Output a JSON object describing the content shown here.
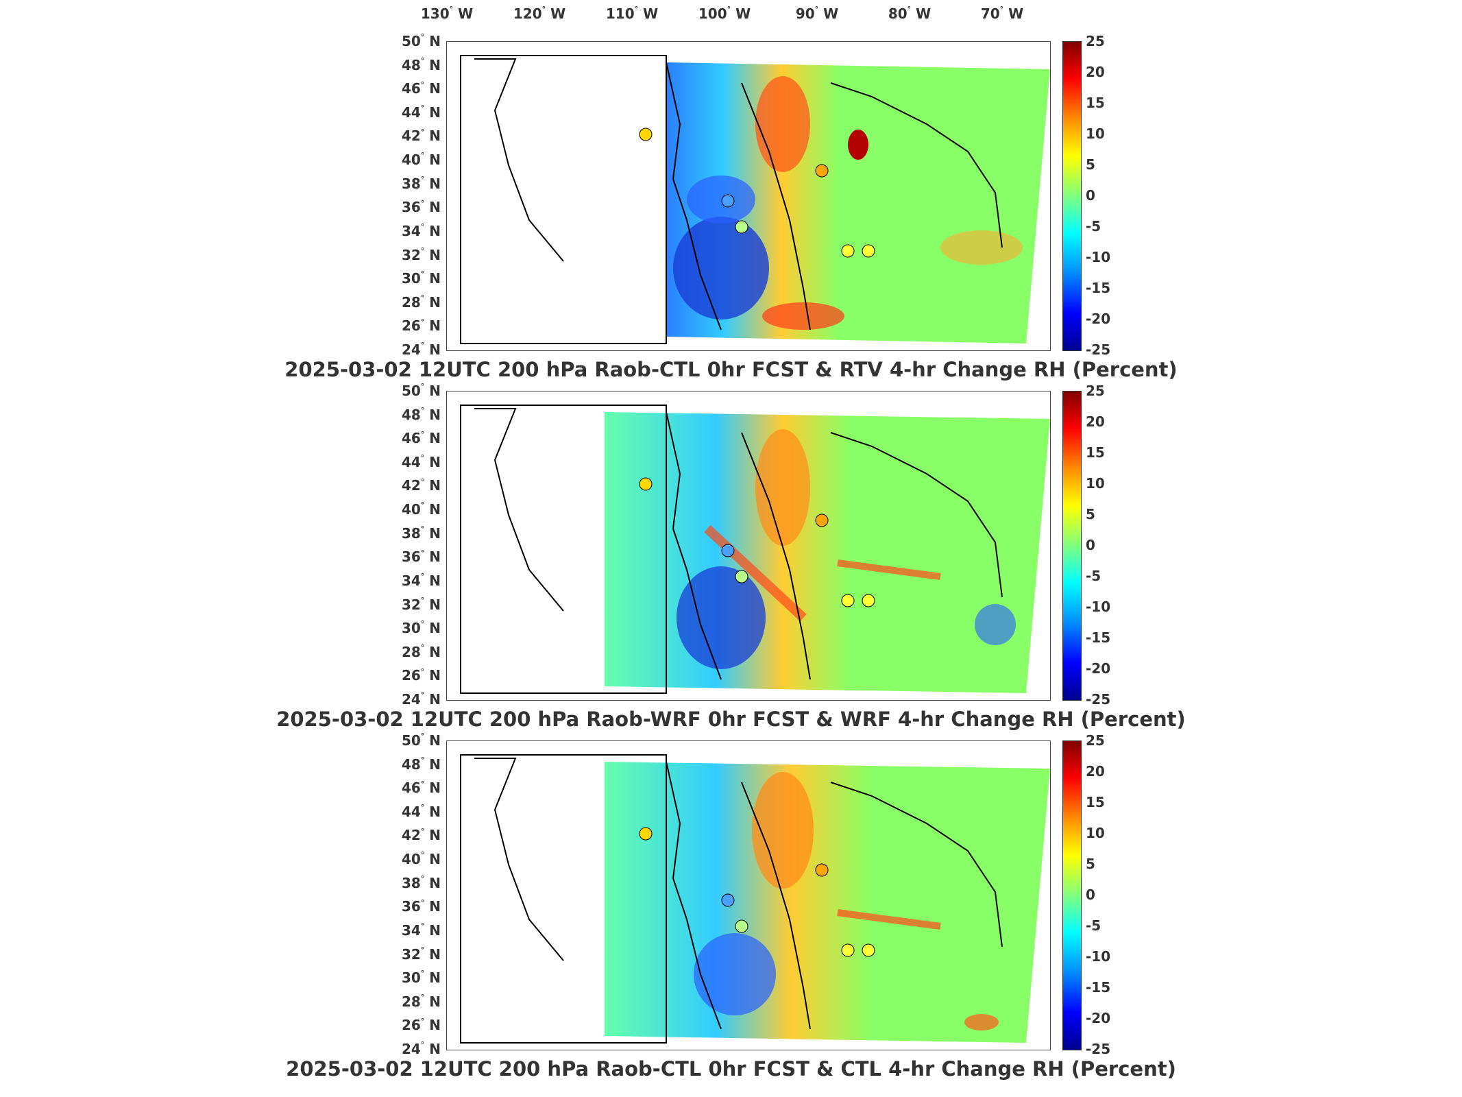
{
  "lon_labels": [
    {
      "deg": "130",
      "dir": "W"
    },
    {
      "deg": "120",
      "dir": "W"
    },
    {
      "deg": "110",
      "dir": "W"
    },
    {
      "deg": "100",
      "dir": "W"
    },
    {
      "deg": "90",
      "dir": "W"
    },
    {
      "deg": "80",
      "dir": "W"
    },
    {
      "deg": "70",
      "dir": "W"
    }
  ],
  "lat_labels": [
    {
      "deg": "50",
      "dir": "N"
    },
    {
      "deg": "48",
      "dir": "N"
    },
    {
      "deg": "46",
      "dir": "N"
    },
    {
      "deg": "44",
      "dir": "N"
    },
    {
      "deg": "42",
      "dir": "N"
    },
    {
      "deg": "40",
      "dir": "N"
    },
    {
      "deg": "38",
      "dir": "N"
    },
    {
      "deg": "36",
      "dir": "N"
    },
    {
      "deg": "34",
      "dir": "N"
    },
    {
      "deg": "32",
      "dir": "N"
    },
    {
      "deg": "30",
      "dir": "N"
    },
    {
      "deg": "28",
      "dir": "N"
    },
    {
      "deg": "26",
      "dir": "N"
    },
    {
      "deg": "24",
      "dir": "N"
    }
  ],
  "colorbar": {
    "ticks": [
      "25",
      "20",
      "15",
      "10",
      "5",
      "0",
      "-5",
      "-10",
      "-15",
      "-20",
      "-25"
    ],
    "colors": [
      "#800000",
      "#ff0000",
      "#ff8c00",
      "#ffff00",
      "#7fff7f",
      "#00ffff",
      "#008cff",
      "#0000ff",
      "#00008f"
    ]
  },
  "panels": [
    {
      "title": "2025-03-02 12UTC 200 hPa Raob-CTL 0hr FCST & RTV 4-hr Change RH (Percent)"
    },
    {
      "title": "2025-03-02 12UTC 200 hPa Raob-WRF 0hr FCST & WRF 4-hr Change RH (Percent)"
    },
    {
      "title": "2025-03-02 12UTC 200 hPa Raob-CTL 0hr FCST & CTL 4-hr Change RH (Percent)"
    }
  ]
}
